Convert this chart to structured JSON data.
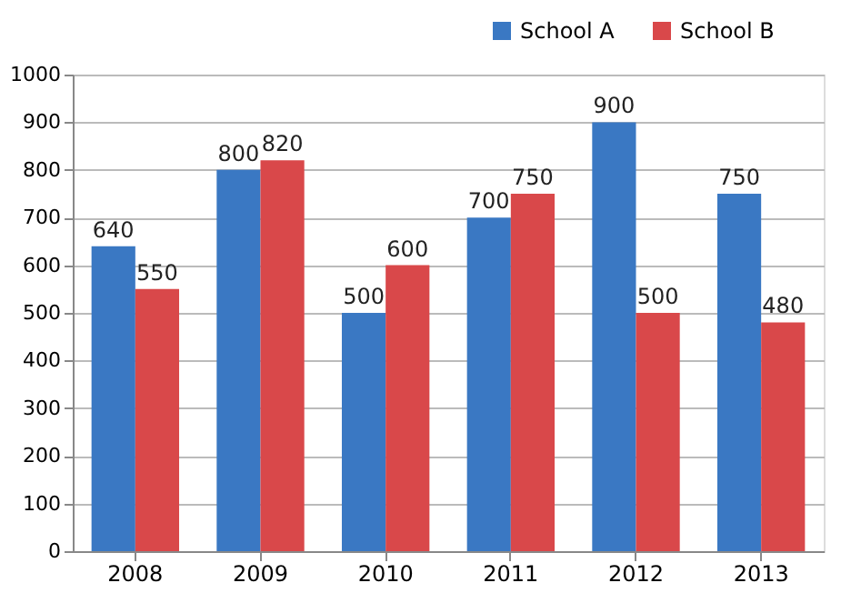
{
  "chart_data": {
    "type": "bar",
    "categories": [
      "2008",
      "2009",
      "2010",
      "2011",
      "2012",
      "2013"
    ],
    "series": [
      {
        "name": "School A",
        "color": "#3a78c3",
        "values": [
          640,
          800,
          500,
          700,
          900,
          750
        ]
      },
      {
        "name": "School B",
        "color": "#d9484a",
        "values": [
          550,
          820,
          600,
          750,
          500,
          480
        ]
      }
    ],
    "ylim": [
      0,
      1000
    ],
    "yticks": [
      0,
      100,
      200,
      300,
      400,
      500,
      600,
      700,
      800,
      900,
      1000
    ],
    "grid": "y",
    "legend": "top right",
    "data_labels": true
  }
}
